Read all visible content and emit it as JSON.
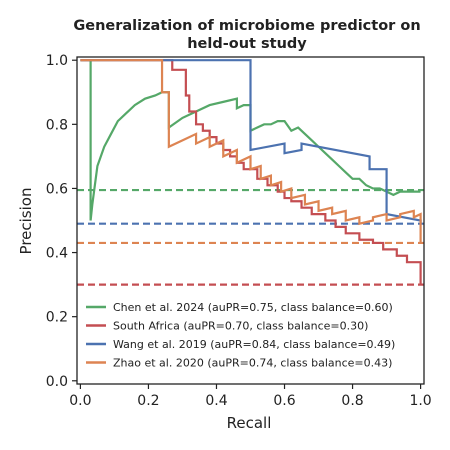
{
  "chart_data": {
    "type": "line",
    "title_lines": [
      "Generalization of microbiome predictor on",
      "held-out study"
    ],
    "xlabel": "Recall",
    "ylabel": "Precision",
    "xlim": [
      -0.01,
      1.01
    ],
    "ylim": [
      -0.01,
      1.01
    ],
    "xticks": [
      "0.0",
      "0.2",
      "0.4",
      "0.6",
      "0.8",
      "1.0"
    ],
    "yticks": [
      "0.0",
      "0.2",
      "0.4",
      "0.6",
      "0.8",
      "1.0"
    ],
    "grid": false,
    "legend_position": "bottom-right",
    "series": [
      {
        "name": "Chen et al. 2024 (auPR=0.75, class balance=0.60)",
        "color": "#55a868",
        "class_balance": 0.595,
        "x": [
          0.0,
          0.03,
          0.03,
          0.03,
          0.035,
          0.05,
          0.07,
          0.09,
          0.11,
          0.13,
          0.16,
          0.19,
          0.22,
          0.24,
          0.26,
          0.26,
          0.3,
          0.34,
          0.38,
          0.42,
          0.46,
          0.46,
          0.48,
          0.5,
          0.5,
          0.52,
          0.54,
          0.56,
          0.58,
          0.6,
          0.62,
          0.64,
          0.66,
          0.68,
          0.7,
          0.72,
          0.74,
          0.76,
          0.78,
          0.8,
          0.82,
          0.84,
          0.86,
          0.88,
          0.9,
          0.92,
          0.94,
          0.96,
          0.98,
          1.0
        ],
        "y": [
          1.0,
          1.0,
          1.0,
          0.5,
          0.55,
          0.67,
          0.73,
          0.77,
          0.81,
          0.83,
          0.86,
          0.88,
          0.89,
          0.9,
          0.9,
          0.79,
          0.82,
          0.84,
          0.86,
          0.87,
          0.88,
          0.85,
          0.86,
          0.86,
          0.78,
          0.79,
          0.8,
          0.8,
          0.81,
          0.81,
          0.78,
          0.79,
          0.77,
          0.75,
          0.73,
          0.71,
          0.69,
          0.67,
          0.65,
          0.63,
          0.63,
          0.61,
          0.6,
          0.6,
          0.59,
          0.58,
          0.59,
          0.59,
          0.59,
          0.59
        ],
        "step": false
      },
      {
        "name": "South Africa (auPR=0.70, class balance=0.30)",
        "color": "#c44e52",
        "class_balance": 0.3,
        "x": [
          0.0,
          0.27,
          0.27,
          0.31,
          0.31,
          0.32,
          0.32,
          0.34,
          0.34,
          0.36,
          0.36,
          0.38,
          0.38,
          0.4,
          0.4,
          0.42,
          0.42,
          0.44,
          0.44,
          0.46,
          0.46,
          0.48,
          0.48,
          0.52,
          0.52,
          0.55,
          0.55,
          0.58,
          0.58,
          0.6,
          0.6,
          0.62,
          0.62,
          0.65,
          0.65,
          0.68,
          0.68,
          0.72,
          0.72,
          0.75,
          0.75,
          0.78,
          0.78,
          0.82,
          0.82,
          0.86,
          0.86,
          0.89,
          0.89,
          0.93,
          0.93,
          0.96,
          0.96,
          1.0,
          1.0
        ],
        "y": [
          1.0,
          1.0,
          0.97,
          0.97,
          0.89,
          0.89,
          0.84,
          0.84,
          0.8,
          0.8,
          0.78,
          0.78,
          0.76,
          0.76,
          0.74,
          0.74,
          0.72,
          0.72,
          0.7,
          0.7,
          0.68,
          0.68,
          0.66,
          0.66,
          0.63,
          0.63,
          0.61,
          0.61,
          0.59,
          0.59,
          0.57,
          0.57,
          0.56,
          0.56,
          0.54,
          0.54,
          0.52,
          0.52,
          0.5,
          0.5,
          0.48,
          0.48,
          0.46,
          0.46,
          0.44,
          0.44,
          0.43,
          0.43,
          0.41,
          0.41,
          0.39,
          0.39,
          0.37,
          0.37,
          0.3
        ],
        "step": false
      },
      {
        "name": "Wang et al. 2019 (auPR=0.84, class balance=0.49)",
        "color": "#4c72b0",
        "class_balance": 0.49,
        "x": [
          0.0,
          0.5,
          0.5,
          0.6,
          0.6,
          0.65,
          0.65,
          0.85,
          0.85,
          0.9,
          0.9,
          1.0,
          1.0
        ],
        "y": [
          1.0,
          1.0,
          0.72,
          0.74,
          0.71,
          0.72,
          0.74,
          0.7,
          0.66,
          0.66,
          0.52,
          0.5,
          0.49
        ],
        "step": false
      },
      {
        "name": "Zhao et al. 2020 (auPR=0.74, class balance=0.43)",
        "color": "#dd8452",
        "class_balance": 0.43,
        "x": [
          0.0,
          0.24,
          0.24,
          0.26,
          0.26,
          0.3,
          0.34,
          0.34,
          0.38,
          0.38,
          0.42,
          0.42,
          0.46,
          0.46,
          0.5,
          0.5,
          0.53,
          0.53,
          0.56,
          0.56,
          0.59,
          0.59,
          0.62,
          0.62,
          0.66,
          0.66,
          0.7,
          0.7,
          0.74,
          0.74,
          0.78,
          0.78,
          0.82,
          0.82,
          0.86,
          0.86,
          0.9,
          0.9,
          0.94,
          0.94,
          0.98,
          0.98,
          1.0,
          1.0
        ],
        "y": [
          1.0,
          1.0,
          0.9,
          0.9,
          0.73,
          0.75,
          0.77,
          0.74,
          0.76,
          0.73,
          0.75,
          0.7,
          0.72,
          0.68,
          0.7,
          0.66,
          0.67,
          0.63,
          0.64,
          0.61,
          0.62,
          0.59,
          0.6,
          0.57,
          0.58,
          0.55,
          0.56,
          0.53,
          0.54,
          0.52,
          0.53,
          0.5,
          0.51,
          0.49,
          0.5,
          0.51,
          0.52,
          0.5,
          0.51,
          0.52,
          0.53,
          0.51,
          0.52,
          0.43
        ],
        "step": false
      }
    ]
  }
}
